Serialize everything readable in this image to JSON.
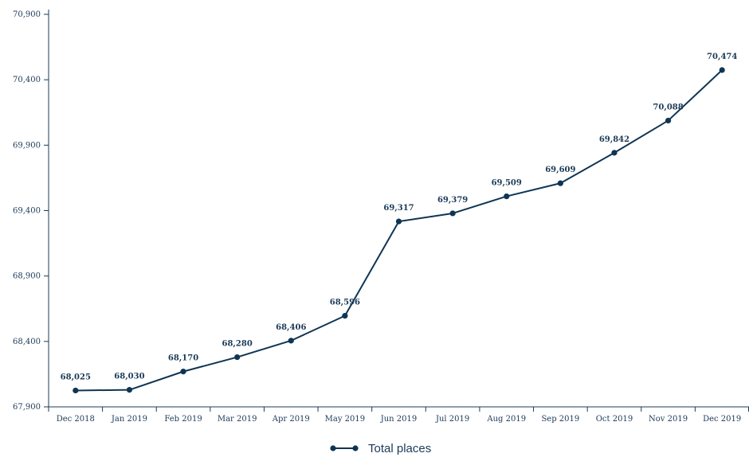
{
  "chart_data": {
    "type": "line",
    "title": "",
    "xlabel": "",
    "ylabel": "",
    "categories": [
      "Dec 2018",
      "Jan 2019",
      "Feb 2019",
      "Mar 2019",
      "Apr 2019",
      "May 2019",
      "Jun 2019",
      "Jul 2019",
      "Aug 2019",
      "Sep 2019",
      "Oct 2019",
      "Nov 2019",
      "Dec 2019"
    ],
    "series": [
      {
        "name": "Total places",
        "values": [
          68025,
          68030,
          68170,
          68280,
          68406,
          68596,
          69317,
          69379,
          69509,
          69609,
          69842,
          70088,
          70474
        ],
        "value_labels": [
          "68,025",
          "68,030",
          "68,170",
          "68,280",
          "68,406",
          "68,596",
          "69,317",
          "69,379",
          "69,509",
          "69,609",
          "69,842",
          "70,088",
          "70,474"
        ]
      }
    ],
    "ylim": [
      67900,
      70900
    ],
    "yticks": [
      67900,
      68400,
      68900,
      69400,
      69900,
      70400,
      70900
    ],
    "ytick_labels": [
      "67,900",
      "68,400",
      "68,900",
      "69,400",
      "69,900",
      "70,400",
      "70,900"
    ],
    "grid": false,
    "legend_position": "bottom-center",
    "colors": {
      "series": "#0f3554",
      "axis": "#1b3a57",
      "text": "#1b3a57"
    }
  }
}
